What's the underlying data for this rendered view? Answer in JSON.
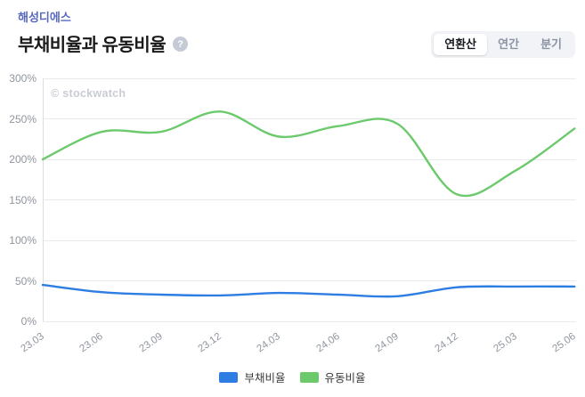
{
  "header": {
    "company": "해성디에스",
    "title": "부채비율과 유동비율",
    "help_glyph": "?",
    "tabs": [
      {
        "label": "연환산",
        "active": true
      },
      {
        "label": "연간",
        "active": false
      },
      {
        "label": "분기",
        "active": false
      }
    ]
  },
  "watermark": "© stockwatch",
  "chart_data": {
    "type": "line",
    "title": "부채비율과 유동비율",
    "smoothing": "spline",
    "categories": [
      "23.03",
      "23.06",
      "23.09",
      "23.12",
      "24.03",
      "24.06",
      "24.09",
      "24.12",
      "25.03",
      "25.06"
    ],
    "series": [
      {
        "name": "부채비율",
        "color": "#2e7de3",
        "values": [
          45,
          36,
          33,
          32,
          35,
          33,
          31,
          42,
          43,
          43
        ]
      },
      {
        "name": "유동비율",
        "color": "#6cc96c",
        "values": [
          200,
          234,
          234,
          259,
          228,
          241,
          244,
          157,
          186,
          238
        ]
      }
    ],
    "ylim": [
      0,
      300
    ],
    "yticks": [
      300,
      250,
      200,
      150,
      100,
      50,
      0
    ],
    "ytick_suffix": "%",
    "grid": true,
    "legend_position": "bottom"
  },
  "colors": {
    "company_accent": "#5868bd",
    "debt_ratio_line": "#2e7de3",
    "current_ratio_line": "#6cc96c",
    "gridline": "#e9eaec",
    "axis_text": "#8f959e",
    "tab_bg": "#f1f3f6"
  }
}
